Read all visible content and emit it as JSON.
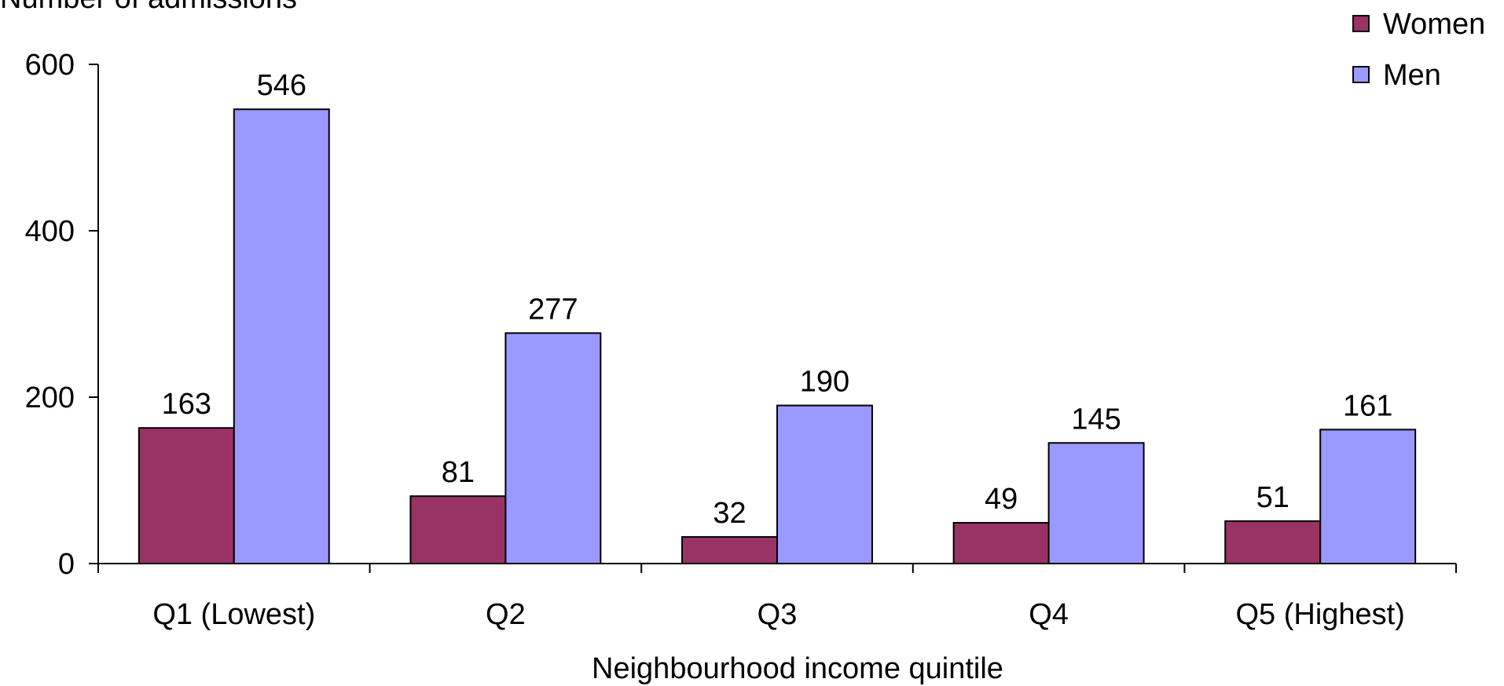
{
  "chart_data": {
    "type": "bar",
    "title": "",
    "xlabel": "Neighbourhood income quintile",
    "ylabel": "Number of admissions",
    "categories": [
      "Q1 (Lowest)",
      "Q2",
      "Q3",
      "Q4",
      "Q5 (Highest)"
    ],
    "series": [
      {
        "name": "Women",
        "values": [
          163,
          81,
          32,
          49,
          51
        ],
        "color": "#993366"
      },
      {
        "name": "Men",
        "values": [
          546,
          277,
          190,
          145,
          161
        ],
        "color": "#9999ff"
      }
    ],
    "ylim": [
      0,
      600
    ],
    "yticks": [
      0,
      200,
      400,
      600
    ],
    "yticklabels": [
      "0",
      "200",
      "400",
      "600"
    ],
    "grid": false,
    "legend_position": "top-right",
    "data_labels": true
  }
}
